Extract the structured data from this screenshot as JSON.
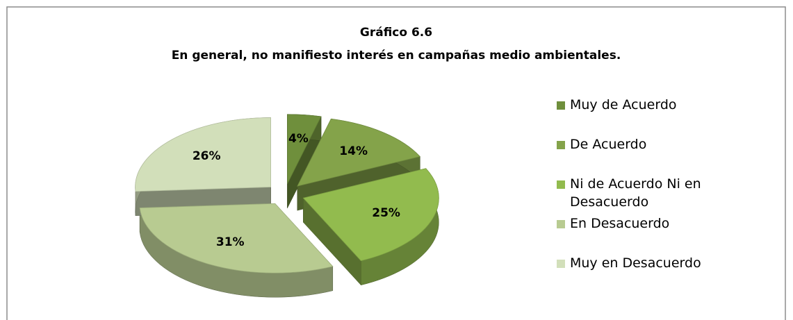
{
  "chart_data": {
    "type": "pie",
    "title": "Gráfico 6.6",
    "subtitle": "En general, no manifiesto interés en campañas medio ambientales.",
    "categories": [
      "Muy de Acuerdo",
      "De Acuerdo",
      "Ni de Acuerdo Ni en Desacuerdo",
      "En Desacuerdo",
      "Muy en Desacuerdo"
    ],
    "values": [
      4,
      14,
      25,
      31,
      26
    ],
    "value_labels": [
      "4%",
      "14%",
      "25%",
      "31%",
      "26%"
    ],
    "colors": [
      "#6f8f3c",
      "#84a34a",
      "#92bb4e",
      "#b8cb91",
      "#d2dfba"
    ],
    "legend": "right"
  }
}
